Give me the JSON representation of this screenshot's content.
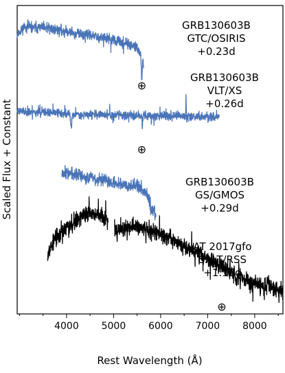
{
  "chart_data": {
    "type": "line",
    "xlabel": "Rest Wavelength (Å)",
    "ylabel": "Scaled Flux + Constant",
    "xlim": [
      2950,
      8600
    ],
    "x_ticks": [
      4000,
      5000,
      6000,
      7000,
      8000
    ],
    "x_tick_labels": [
      "4000",
      "5000",
      "6000",
      "7000",
      "8000"
    ],
    "y_ticks_shown": false,
    "series": [
      {
        "name": "GRB130603B GTC/OSIRIS",
        "color": "#4a74b8",
        "seed": 11,
        "noise": 0.1,
        "spikes": 0.03,
        "gaps": [],
        "anchors": [
          [
            2950,
            10.1
          ],
          [
            3100,
            10.35
          ],
          [
            3600,
            10.3
          ],
          [
            4200,
            10.15
          ],
          [
            4800,
            10.0
          ],
          [
            5200,
            9.85
          ],
          [
            5500,
            9.7
          ],
          [
            5600,
            9.4
          ],
          [
            5640,
            9.2
          ]
        ],
        "features": [
          [
            5600,
            -0.75,
            12
          ]
        ]
      },
      {
        "name": "GRB130603B VLT/XS",
        "color": "#4a74b8",
        "seed": 23,
        "noise": 0.08,
        "spikes": 0.05,
        "gaps": [],
        "anchors": [
          [
            2950,
            7.75
          ],
          [
            3500,
            7.7
          ],
          [
            4200,
            7.65
          ],
          [
            5000,
            7.62
          ],
          [
            6000,
            7.6
          ],
          [
            7000,
            7.58
          ],
          [
            7250,
            7.55
          ]
        ],
        "features": [
          [
            4100,
            -0.4,
            18
          ],
          [
            6540,
            0.65,
            6
          ],
          [
            5610,
            -0.35,
            8
          ]
        ]
      },
      {
        "name": "GRB130603B GS/GMOS",
        "color": "#4a74b8",
        "seed": 37,
        "noise": 0.12,
        "spikes": 0.03,
        "gaps": [],
        "anchors": [
          [
            3900,
            5.9
          ],
          [
            4300,
            5.75
          ],
          [
            5000,
            5.55
          ],
          [
            5500,
            5.45
          ],
          [
            5700,
            5.2
          ],
          [
            5900,
            4.55
          ]
        ],
        "features": [
          [
            5800,
            -0.3,
            20
          ]
        ]
      },
      {
        "name": "AT 2017gfo SALT/RSS",
        "color": "#000000",
        "seed": 53,
        "noise": 0.16,
        "spikes": 0.05,
        "gaps": [
          [
            4880,
            5020
          ]
        ],
        "anchors": [
          [
            3600,
            3.4
          ],
          [
            3800,
            3.9
          ],
          [
            4300,
            4.5
          ],
          [
            4600,
            4.6
          ],
          [
            4870,
            4.4
          ],
          [
            5030,
            4.05
          ],
          [
            5500,
            4.2
          ],
          [
            6000,
            4.0
          ],
          [
            6500,
            3.6
          ],
          [
            7000,
            3.2
          ],
          [
            7500,
            2.8
          ],
          [
            8000,
            2.45
          ],
          [
            8600,
            2.2
          ]
        ],
        "features": [
          [
            7600,
            -0.3,
            18
          ]
        ]
      }
    ],
    "annotations": [
      {
        "lines": [
          "GRB130603B",
          "GTC/OSIRIS",
          "+0.23d"
        ]
      },
      {
        "lines": [
          "GRB130603B",
          "VLT/XS",
          "+0.26d"
        ]
      },
      {
        "lines": [
          "GRB130603B",
          "GS/GMOS",
          "+0.29d"
        ]
      },
      {
        "lines": [
          "AT 2017gfo",
          "SALT/RSS",
          "+1.18d"
        ]
      }
    ],
    "telluric_markers": [
      {
        "x": 5600,
        "symbol": "⊕"
      },
      {
        "x": 5600,
        "symbol": "⊕"
      },
      {
        "x": 7300,
        "symbol": "⊕"
      }
    ]
  }
}
